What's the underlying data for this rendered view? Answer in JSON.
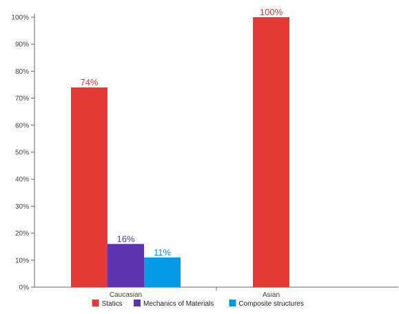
{
  "chart_data": {
    "type": "bar",
    "categories": [
      "Caucasian",
      "Asian"
    ],
    "series": [
      {
        "name": "Statics",
        "color": "#e53935",
        "values": [
          74,
          100
        ]
      },
      {
        "name": "Mechanics of Materials",
        "color": "#5e35b1",
        "values": [
          16,
          null
        ]
      },
      {
        "name": "Composite structures",
        "color": "#039be5",
        "values": [
          11,
          null
        ]
      }
    ],
    "data_labels": [
      [
        "74%",
        "100%"
      ],
      [
        "16%",
        null
      ],
      [
        "11%",
        null
      ]
    ],
    "ylim": [
      0,
      100
    ],
    "yticks": [
      0,
      10,
      20,
      30,
      40,
      50,
      60,
      70,
      80,
      90,
      100
    ],
    "ytick_labels": [
      "0%",
      "10%",
      "20%",
      "30%",
      "40%",
      "50%",
      "60%",
      "70%",
      "80%",
      "90%",
      "100%"
    ],
    "legend_position": "bottom",
    "grid": false,
    "title": "",
    "xlabel": "",
    "ylabel": ""
  }
}
